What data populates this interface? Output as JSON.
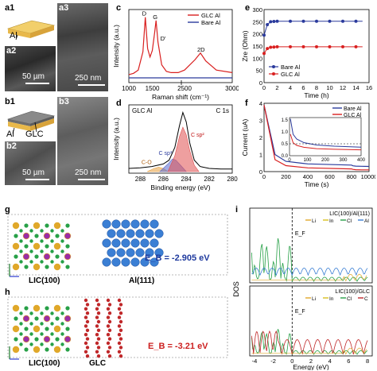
{
  "figure": {
    "panel_labels": [
      "a1",
      "a2",
      "a3",
      "b1",
      "b2",
      "b3",
      "c",
      "d",
      "e",
      "f",
      "g",
      "h",
      "i"
    ],
    "a1": {
      "layer": "Al"
    },
    "a2": {
      "scale": "50 µm"
    },
    "a3": {
      "scale": "250 nm"
    },
    "b1": {
      "layers": [
        "Al",
        "GLC"
      ]
    },
    "b2": {
      "scale": "50 µm"
    },
    "b3": {
      "scale": "250 nm"
    },
    "g": {
      "left_label": "LIC(100)",
      "right_label": "Al(111)",
      "energy": "E_B = -2.905 eV",
      "energy_color": "#1f3a9e"
    },
    "h": {
      "left_label": "LIC(100)",
      "right_label": "GLC",
      "energy": "E_B = -3.21 eV",
      "energy_color": "#cc1f1f"
    },
    "colors": {
      "glc": "#d92020",
      "bare": "#2a3a9c",
      "al_atom": "#3b7fd4",
      "c_atom": "#c0282a",
      "li_atom": "#27a047",
      "in_atom": "#e0a82a",
      "cl_atom": "#9a2ea6"
    }
  },
  "chart_data": [
    {
      "panel": "c",
      "type": "line",
      "xlabel": "Raman shift (cm⁻¹)",
      "ylabel": "Intensity (a.u.)",
      "xticks": [
        "1000",
        "1500",
        "2500",
        "3000"
      ],
      "legend": [
        "GLC Al",
        "Bare Al"
      ],
      "peak_labels": [
        "D",
        "G",
        "D'",
        "2D"
      ],
      "series": [
        {
          "name": "GLC Al",
          "x": [
            1000,
            1100,
            1200,
            1300,
            1350,
            1400,
            1450,
            1500,
            1550,
            1580,
            1620,
            1700,
            1800,
            1900,
            2050,
            2550,
            2650,
            2700,
            2750,
            2850,
            3000
          ],
          "y": [
            0.05,
            0.07,
            0.12,
            0.4,
            0.93,
            0.45,
            0.32,
            0.42,
            0.7,
            0.88,
            0.55,
            0.2,
            0.1,
            0.08,
            0.08,
            0.12,
            0.28,
            0.38,
            0.26,
            0.12,
            0.08
          ]
        },
        {
          "name": "Bare Al",
          "x": [
            1000,
            1500,
            2050,
            2550,
            3000
          ],
          "y": [
            0.0,
            0.0,
            0.0,
            0.0,
            0.0
          ]
        }
      ]
    },
    {
      "panel": "d",
      "type": "line",
      "title": "GLC Al",
      "annotation": "C 1s",
      "xlabel": "Binding energy (eV)",
      "ylabel": "Intensity (a.u.)",
      "xticks": [
        "288",
        "286",
        "284",
        "282",
        "280"
      ],
      "component_labels": [
        "C sp²",
        "C sp³",
        "C-O"
      ],
      "series": [
        {
          "name": "fit envelope",
          "x": [
            289,
            288,
            287,
            286,
            285.5,
            285,
            284.6,
            284.3,
            284.0,
            283.7,
            283.3,
            282.8,
            282,
            281,
            280
          ],
          "y": [
            0.05,
            0.06,
            0.08,
            0.12,
            0.18,
            0.38,
            0.72,
            0.93,
            0.78,
            0.45,
            0.18,
            0.08,
            0.05,
            0.04,
            0.04
          ]
        },
        {
          "name": "C sp2",
          "x": [
            285.6,
            285,
            284.6,
            284.3,
            284.0,
            283.7,
            283.3,
            282.9
          ],
          "y": [
            0.0,
            0.25,
            0.55,
            0.7,
            0.58,
            0.33,
            0.1,
            0.0
          ]
        },
        {
          "name": "C sp3",
          "x": [
            286.3,
            285.6,
            285.2,
            284.9,
            284.5,
            284.0
          ],
          "y": [
            0.0,
            0.12,
            0.2,
            0.18,
            0.1,
            0.0
          ]
        },
        {
          "name": "C-O",
          "x": [
            287.4,
            286.8,
            286.4,
            286.0,
            285.6
          ],
          "y": [
            0.0,
            0.05,
            0.07,
            0.05,
            0.0
          ]
        }
      ]
    },
    {
      "panel": "e",
      "type": "line",
      "xlabel": "Time (h)",
      "ylabel": "Zre (Ohm)",
      "xlim": [
        0,
        16
      ],
      "ylim": [
        0,
        300
      ],
      "xticks": [
        "0",
        "2",
        "4",
        "6",
        "8",
        "10",
        "12",
        "14",
        "16"
      ],
      "yticks": [
        "0",
        "50",
        "100",
        "150",
        "200",
        "250",
        "300"
      ],
      "legend": [
        "Bare Al",
        "GLC Al"
      ],
      "series": [
        {
          "name": "Bare Al",
          "x": [
            0,
            0.5,
            1,
            1.5,
            2,
            3,
            4,
            5,
            6,
            7,
            8,
            9,
            10,
            11,
            12,
            13,
            14,
            15
          ],
          "y": [
            195,
            238,
            250,
            251,
            252,
            252,
            252,
            252,
            252,
            252,
            252,
            252,
            252,
            252,
            252,
            252,
            252,
            252
          ]
        },
        {
          "name": "GLC Al",
          "x": [
            0,
            0.5,
            1,
            1.5,
            2,
            3,
            4,
            5,
            6,
            7,
            8,
            9,
            10,
            11,
            12,
            13,
            14,
            15
          ],
          "y": [
            120,
            140,
            145,
            146,
            147,
            147,
            147,
            147,
            147,
            147,
            147,
            147,
            147,
            147,
            147,
            147,
            147,
            147
          ]
        }
      ]
    },
    {
      "panel": "f",
      "type": "line",
      "xlabel": "Time (s)",
      "ylabel": "Current (uA)",
      "xlim": [
        0,
        10000
      ],
      "ylim": [
        0,
        4
      ],
      "xticks": [
        "0",
        "200",
        "400",
        "600",
        "800",
        "10000"
      ],
      "yticks": [
        "0",
        "1",
        "2",
        "3",
        "4"
      ],
      "legend": [
        "Bare Al",
        "GLC Al"
      ],
      "inset": {
        "xticks": [
          "0",
          "100",
          "200",
          "300",
          "400"
        ],
        "yticks": [
          "0.0",
          "0.5",
          "1.0",
          "1.5"
        ]
      },
      "series": [
        {
          "name": "Bare Al",
          "x": [
            0,
            100,
            200,
            400,
            800,
            1500,
            3000,
            6000,
            10000
          ],
          "y": [
            3.9,
            1.0,
            0.6,
            0.45,
            0.38,
            0.34,
            0.32,
            0.31,
            0.3
          ]
        },
        {
          "name": "GLC Al",
          "x": [
            0,
            100,
            200,
            400,
            800,
            1500,
            3000,
            6000,
            10000
          ],
          "y": [
            3.9,
            0.7,
            0.35,
            0.22,
            0.16,
            0.13,
            0.11,
            0.1,
            0.1
          ]
        }
      ]
    },
    {
      "panel": "i",
      "type": "line",
      "xlabel": "Energy (eV)",
      "ylabel": "DOS",
      "xticks": [
        "-4",
        "-2",
        "0",
        "2",
        "4",
        "6",
        "8"
      ],
      "fermi_label": "E_F",
      "subplots": [
        {
          "title": "LIC(100)/Al(111)",
          "legend": [
            "Li",
            "In",
            "Cl",
            "Al"
          ]
        },
        {
          "title": "LIC(100)/GLC",
          "legend": [
            "Li",
            "In",
            "Cl",
            "C"
          ]
        }
      ]
    }
  ]
}
